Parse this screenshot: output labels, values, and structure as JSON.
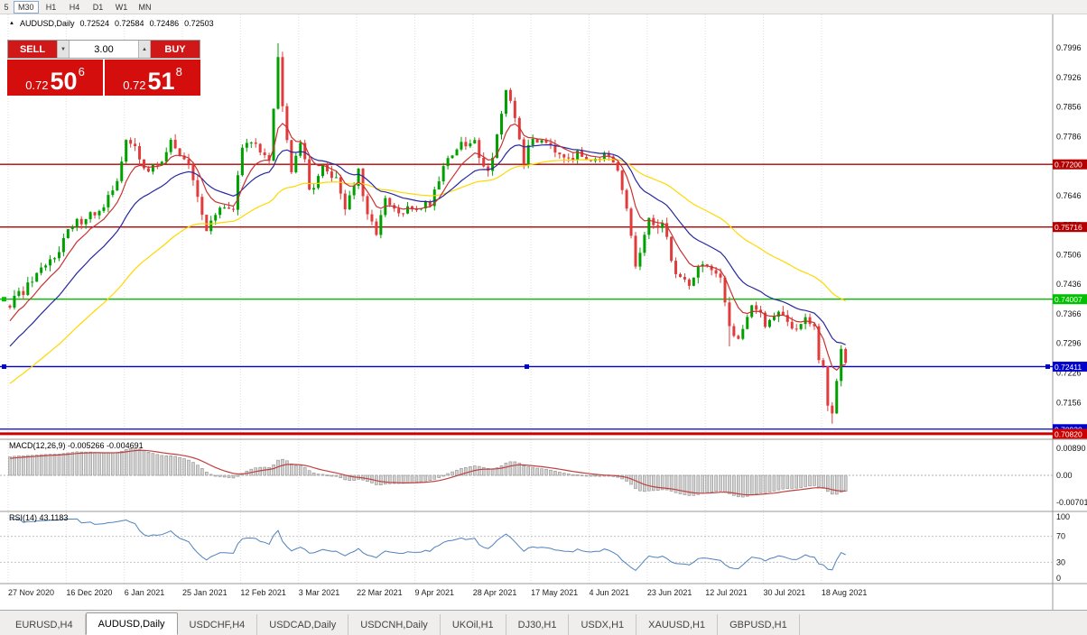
{
  "toolbar": {
    "timeframes": [
      {
        "label": "5",
        "active": false
      },
      {
        "label": "M30",
        "active": true
      },
      {
        "label": "H1",
        "active": false
      },
      {
        "label": "H4",
        "active": false
      },
      {
        "label": "D1",
        "active": false
      },
      {
        "label": "W1",
        "active": false
      },
      {
        "label": "MN",
        "active": false
      }
    ]
  },
  "chart_header": {
    "symbol": "AUDUSD,Daily",
    "open": "0.72524",
    "high": "0.72584",
    "low": "0.72486",
    "close": "0.72503"
  },
  "trade_panel": {
    "sell_label": "SELL",
    "buy_label": "BUY",
    "lot_size": "3.00",
    "sell_price": {
      "prefix": "0.72",
      "big": "50",
      "sup": "6"
    },
    "buy_price": {
      "prefix": "0.72",
      "big": "51",
      "sup": "8"
    }
  },
  "indicators": {
    "macd": {
      "label": "MACD(12,26,9) -0.005266 -0.004691",
      "axis_labels": [
        "0.00890",
        "0.00",
        "-0.00701"
      ]
    },
    "rsi": {
      "label": "RSI(14) 43.1183",
      "axis_labels": [
        "100",
        "70",
        "30",
        "0"
      ],
      "axis_values": [
        100,
        70,
        30,
        0
      ]
    }
  },
  "tabs": {
    "items": [
      {
        "label": "EURUSD,H4",
        "active": false
      },
      {
        "label": "AUDUSD,Daily",
        "active": true
      },
      {
        "label": "USDCHF,H4",
        "active": false
      },
      {
        "label": "USDCAD,Daily",
        "active": false
      },
      {
        "label": "USDCNH,Daily",
        "active": false
      },
      {
        "label": "UKOil,H1",
        "active": false
      },
      {
        "label": "DJ30,H1",
        "active": false
      },
      {
        "label": "USDX,H1",
        "active": false
      },
      {
        "label": "XAUUSD,H1",
        "active": false
      },
      {
        "label": "GBPUSD,H1",
        "active": false
      }
    ]
  },
  "chart_data": {
    "type": "candlestick",
    "symbol": "AUDUSD",
    "timeframe": "Daily",
    "bars": 188,
    "y_axis_ticks": [
      "0.7996",
      "0.7926",
      "0.7856",
      "0.7786",
      "0.7716",
      "0.7646",
      "0.7576",
      "0.7506",
      "0.7436",
      "0.7366",
      "0.7296",
      "0.7226",
      "0.7156",
      "0.7086"
    ],
    "x_axis_dates": [
      "27 Nov 2020",
      "16 Dec 2020",
      "6 Jan 2021",
      "25 Jan 2021",
      "12 Feb 2021",
      "3 Mar 2021",
      "22 Mar 2021",
      "9 Apr 2021",
      "28 Apr 2021",
      "17 May 2021",
      "4 Jun 2021",
      "23 Jun 2021",
      "12 Jul 2021",
      "30 Jul 2021",
      "18 Aug 2021"
    ],
    "price_anchors": [
      [
        0,
        0.7388
      ],
      [
        3,
        0.742
      ],
      [
        6,
        0.745
      ],
      [
        9,
        0.749
      ],
      [
        13,
        0.756
      ],
      [
        17,
        0.76
      ],
      [
        21,
        0.761
      ],
      [
        24,
        0.769
      ],
      [
        26,
        0.777
      ],
      [
        28,
        0.776
      ],
      [
        31,
        0.77
      ],
      [
        34,
        0.773
      ],
      [
        36,
        0.777
      ],
      [
        39,
        0.774
      ],
      [
        42,
        0.765
      ],
      [
        44,
        0.7565
      ],
      [
        47,
        0.761
      ],
      [
        50,
        0.762
      ],
      [
        52,
        0.776
      ],
      [
        55,
        0.777
      ],
      [
        58,
        0.774
      ],
      [
        60,
        0.797
      ],
      [
        61,
        0.787
      ],
      [
        63,
        0.771
      ],
      [
        65,
        0.778
      ],
      [
        67,
        0.766
      ],
      [
        70,
        0.771
      ],
      [
        73,
        0.769
      ],
      [
        75,
        0.762
      ],
      [
        78,
        0.77
      ],
      [
        80,
        0.759
      ],
      [
        82,
        0.7565
      ],
      [
        84,
        0.763
      ],
      [
        87,
        0.76
      ],
      [
        91,
        0.762
      ],
      [
        94,
        0.763
      ],
      [
        97,
        0.772
      ],
      [
        100,
        0.776
      ],
      [
        104,
        0.777
      ],
      [
        107,
        0.77
      ],
      [
        111,
        0.7885
      ],
      [
        113,
        0.783
      ],
      [
        115,
        0.773
      ],
      [
        117,
        0.778
      ],
      [
        120,
        0.778
      ],
      [
        123,
        0.775
      ],
      [
        126,
        0.774
      ],
      [
        130,
        0.774
      ],
      [
        133,
        0.774
      ],
      [
        136,
        0.77
      ],
      [
        138,
        0.761
      ],
      [
        139,
        0.755
      ],
      [
        140,
        0.748
      ],
      [
        143,
        0.758
      ],
      [
        146,
        0.758
      ],
      [
        149,
        0.746
      ],
      [
        152,
        0.744
      ],
      [
        155,
        0.749
      ],
      [
        156,
        0.748
      ],
      [
        159,
        0.744
      ],
      [
        161,
        0.734
      ],
      [
        163,
        0.731
      ],
      [
        166,
        0.739
      ],
      [
        169,
        0.734
      ],
      [
        172,
        0.738
      ],
      [
        175,
        0.733
      ],
      [
        178,
        0.735
      ],
      [
        180,
        0.733
      ],
      [
        181,
        0.726
      ],
      [
        182,
        0.723
      ],
      [
        183,
        0.715
      ],
      [
        184,
        0.713
      ],
      [
        185,
        0.72
      ],
      [
        186,
        0.728
      ],
      [
        187,
        0.725
      ]
    ],
    "special_high": {
      "60": 0.8007,
      "111": 0.7891
    },
    "special_low": {
      "44": 0.7564,
      "161": 0.7289,
      "184": 0.7106
    },
    "levels": [
      {
        "price": 0.772,
        "label": "0.77200",
        "color": "#b40000",
        "width": 1.4
      },
      {
        "price": 0.75716,
        "label": "0.75716",
        "color": "#b40000",
        "width": 1.4
      },
      {
        "price": 0.74007,
        "label": "0.74007",
        "color": "#00c000",
        "width": 1.4,
        "handles": [
          2
        ]
      },
      {
        "price": 0.72411,
        "label": "0.72411",
        "color": "#0000cc",
        "width": 1.4,
        "handles": [
          2,
          581,
          1158
        ]
      },
      {
        "price": 0.7093,
        "label": "0.70930",
        "color": "#0000cc",
        "width": 1.2
      },
      {
        "price": 0.7082,
        "label": "0.70820",
        "color": "#cc0000",
        "width": 3
      }
    ],
    "moving_averages": [
      {
        "period": 50,
        "color": "#ffd800"
      },
      {
        "period": 20,
        "color": "#2828a0"
      },
      {
        "period": 8,
        "color": "#c83232"
      }
    ],
    "colors": {
      "up": "#00a000",
      "down": "#e03c3c",
      "macd_hist_fill": "#d2d2d2",
      "macd_hist_stroke": "#909090",
      "macd_signal": "#c04040",
      "rsi_line": "#4f81bd"
    },
    "macd_params": {
      "fast": 12,
      "slow": 26,
      "signal": 9
    },
    "rsi_period": 14
  }
}
